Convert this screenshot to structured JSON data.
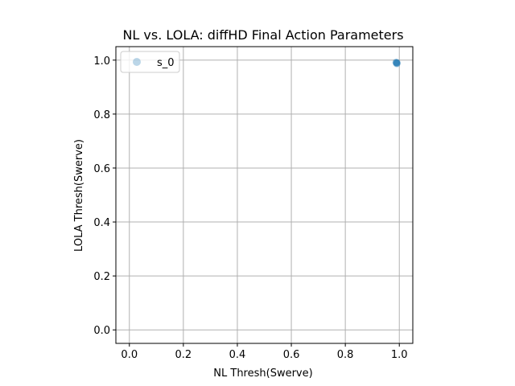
{
  "chart_data": {
    "type": "scatter",
    "title": "NL vs. LOLA: diffHD Final Action Parameters",
    "xlabel": "NL Thresh(Swerve)",
    "ylabel": "LOLA Thresh(Swerve)",
    "xlim": [
      -0.05,
      1.05
    ],
    "ylim": [
      -0.05,
      1.05
    ],
    "xticks": [
      0.0,
      0.2,
      0.4,
      0.6,
      0.8,
      1.0
    ],
    "yticks": [
      0.0,
      0.2,
      0.4,
      0.6,
      0.8,
      1.0
    ],
    "xtick_labels": [
      "0.0",
      "0.2",
      "0.4",
      "0.6",
      "0.8",
      "1.0"
    ],
    "ytick_labels": [
      "0.0",
      "0.2",
      "0.4",
      "0.6",
      "0.8",
      "1.0"
    ],
    "grid": true,
    "legend": {
      "placement": "upper-left",
      "entries": [
        "s_0"
      ]
    },
    "series": [
      {
        "name": "s_0",
        "color": "#1f77b4",
        "points": [
          {
            "x": 0.99,
            "y": 0.99
          },
          {
            "x": 0.99,
            "y": 0.988
          },
          {
            "x": 0.992,
            "y": 0.99
          },
          {
            "x": 0.988,
            "y": 0.992
          },
          {
            "x": 0.991,
            "y": 0.987
          },
          {
            "x": 0.989,
            "y": 0.991
          }
        ]
      }
    ]
  }
}
